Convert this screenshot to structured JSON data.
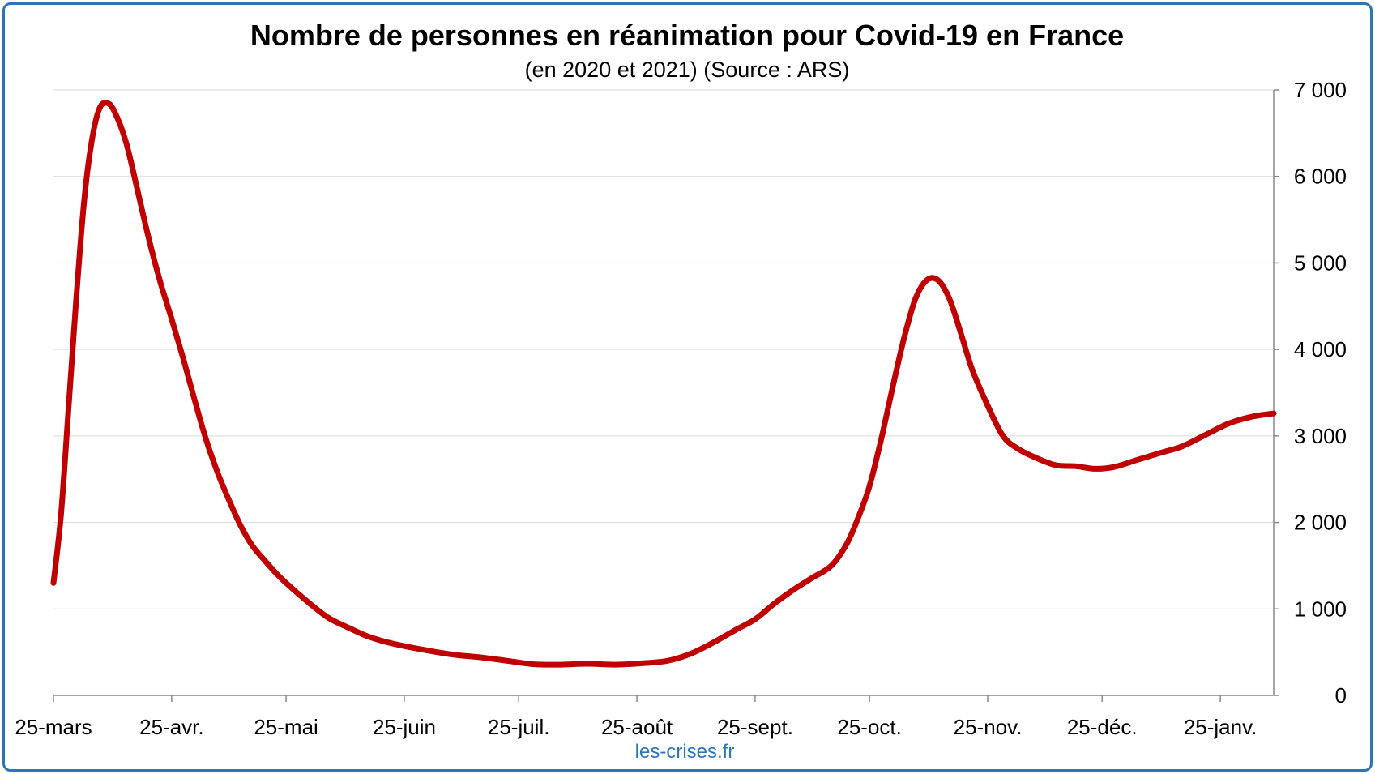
{
  "colors": {
    "frame": "#2e75b6",
    "series": "#c00000",
    "grid": "#d9d9d9",
    "credit": "#2e75b6"
  },
  "chart_data": {
    "type": "line",
    "title": "Nombre de personnes en réanimation pour Covid-19 en France",
    "subtitle": "(en 2020 et 2021) (Source : ARS)",
    "credit": "les-crises.fr",
    "y_axis_side": "right",
    "ylim": [
      0,
      7000
    ],
    "y_ticks": [
      {
        "value": 0,
        "label": "0"
      },
      {
        "value": 1000,
        "label": "1 000"
      },
      {
        "value": 2000,
        "label": "2 000"
      },
      {
        "value": 3000,
        "label": "3 000"
      },
      {
        "value": 4000,
        "label": "4 000"
      },
      {
        "value": 5000,
        "label": "5 000"
      },
      {
        "value": 6000,
        "label": "6 000"
      },
      {
        "value": 7000,
        "label": "7 000"
      }
    ],
    "xlim": [
      "2020-03-25",
      "2021-02-08"
    ],
    "x_ticks": [
      {
        "date": "2020-03-25",
        "label": "25-mars"
      },
      {
        "date": "2020-04-25",
        "label": "25-avr."
      },
      {
        "date": "2020-05-25",
        "label": "25-mai"
      },
      {
        "date": "2020-06-25",
        "label": "25-juin"
      },
      {
        "date": "2020-07-25",
        "label": "25-juil."
      },
      {
        "date": "2020-08-25",
        "label": "25-août"
      },
      {
        "date": "2020-09-25",
        "label": "25-sept."
      },
      {
        "date": "2020-10-25",
        "label": "25-oct."
      },
      {
        "date": "2020-11-25",
        "label": "25-nov."
      },
      {
        "date": "2020-12-25",
        "label": "25-déc."
      },
      {
        "date": "2021-01-25",
        "label": "25-janv."
      }
    ],
    "grid": true,
    "series": [
      {
        "points": [
          [
            "2020-03-25",
            1300
          ],
          [
            "2020-03-27",
            2100
          ],
          [
            "2020-03-29",
            3350
          ],
          [
            "2020-03-31",
            4600
          ],
          [
            "2020-04-02",
            5700
          ],
          [
            "2020-04-04",
            6400
          ],
          [
            "2020-04-06",
            6780
          ],
          [
            "2020-04-08",
            6850
          ],
          [
            "2020-04-10",
            6750
          ],
          [
            "2020-04-13",
            6400
          ],
          [
            "2020-04-16",
            5850
          ],
          [
            "2020-04-19",
            5280
          ],
          [
            "2020-04-22",
            4780
          ],
          [
            "2020-04-25",
            4350
          ],
          [
            "2020-04-28",
            3900
          ],
          [
            "2020-05-01",
            3420
          ],
          [
            "2020-05-04",
            2960
          ],
          [
            "2020-05-07",
            2580
          ],
          [
            "2020-05-10",
            2260
          ],
          [
            "2020-05-13",
            1970
          ],
          [
            "2020-05-16",
            1740
          ],
          [
            "2020-05-19",
            1580
          ],
          [
            "2020-05-22",
            1430
          ],
          [
            "2020-05-25",
            1300
          ],
          [
            "2020-05-31",
            1070
          ],
          [
            "2020-06-05",
            900
          ],
          [
            "2020-06-10",
            790
          ],
          [
            "2020-06-15",
            690
          ],
          [
            "2020-06-20",
            620
          ],
          [
            "2020-06-25",
            570
          ],
          [
            "2020-07-01",
            520
          ],
          [
            "2020-07-08",
            470
          ],
          [
            "2020-07-15",
            440
          ],
          [
            "2020-07-22",
            400
          ],
          [
            "2020-07-29",
            360
          ],
          [
            "2020-08-05",
            355
          ],
          [
            "2020-08-12",
            365
          ],
          [
            "2020-08-19",
            355
          ],
          [
            "2020-08-26",
            370
          ],
          [
            "2020-09-02",
            400
          ],
          [
            "2020-09-08",
            480
          ],
          [
            "2020-09-14",
            610
          ],
          [
            "2020-09-20",
            760
          ],
          [
            "2020-09-25",
            880
          ],
          [
            "2020-09-30",
            1060
          ],
          [
            "2020-10-05",
            1220
          ],
          [
            "2020-10-10",
            1360
          ],
          [
            "2020-10-15",
            1500
          ],
          [
            "2020-10-19",
            1750
          ],
          [
            "2020-10-22",
            2050
          ],
          [
            "2020-10-25",
            2420
          ],
          [
            "2020-10-28",
            2950
          ],
          [
            "2020-10-31",
            3550
          ],
          [
            "2020-11-03",
            4120
          ],
          [
            "2020-11-06",
            4580
          ],
          [
            "2020-11-09",
            4800
          ],
          [
            "2020-11-12",
            4800
          ],
          [
            "2020-11-15",
            4580
          ],
          [
            "2020-11-18",
            4180
          ],
          [
            "2020-11-21",
            3760
          ],
          [
            "2020-11-25",
            3350
          ],
          [
            "2020-11-29",
            3000
          ],
          [
            "2020-12-03",
            2850
          ],
          [
            "2020-12-08",
            2740
          ],
          [
            "2020-12-13",
            2660
          ],
          [
            "2020-12-18",
            2650
          ],
          [
            "2020-12-23",
            2620
          ],
          [
            "2020-12-28",
            2640
          ],
          [
            "2021-01-03",
            2720
          ],
          [
            "2021-01-09",
            2800
          ],
          [
            "2021-01-15",
            2880
          ],
          [
            "2021-01-21",
            3010
          ],
          [
            "2021-01-27",
            3140
          ],
          [
            "2021-02-02",
            3220
          ],
          [
            "2021-02-08",
            3260
          ]
        ]
      }
    ]
  }
}
